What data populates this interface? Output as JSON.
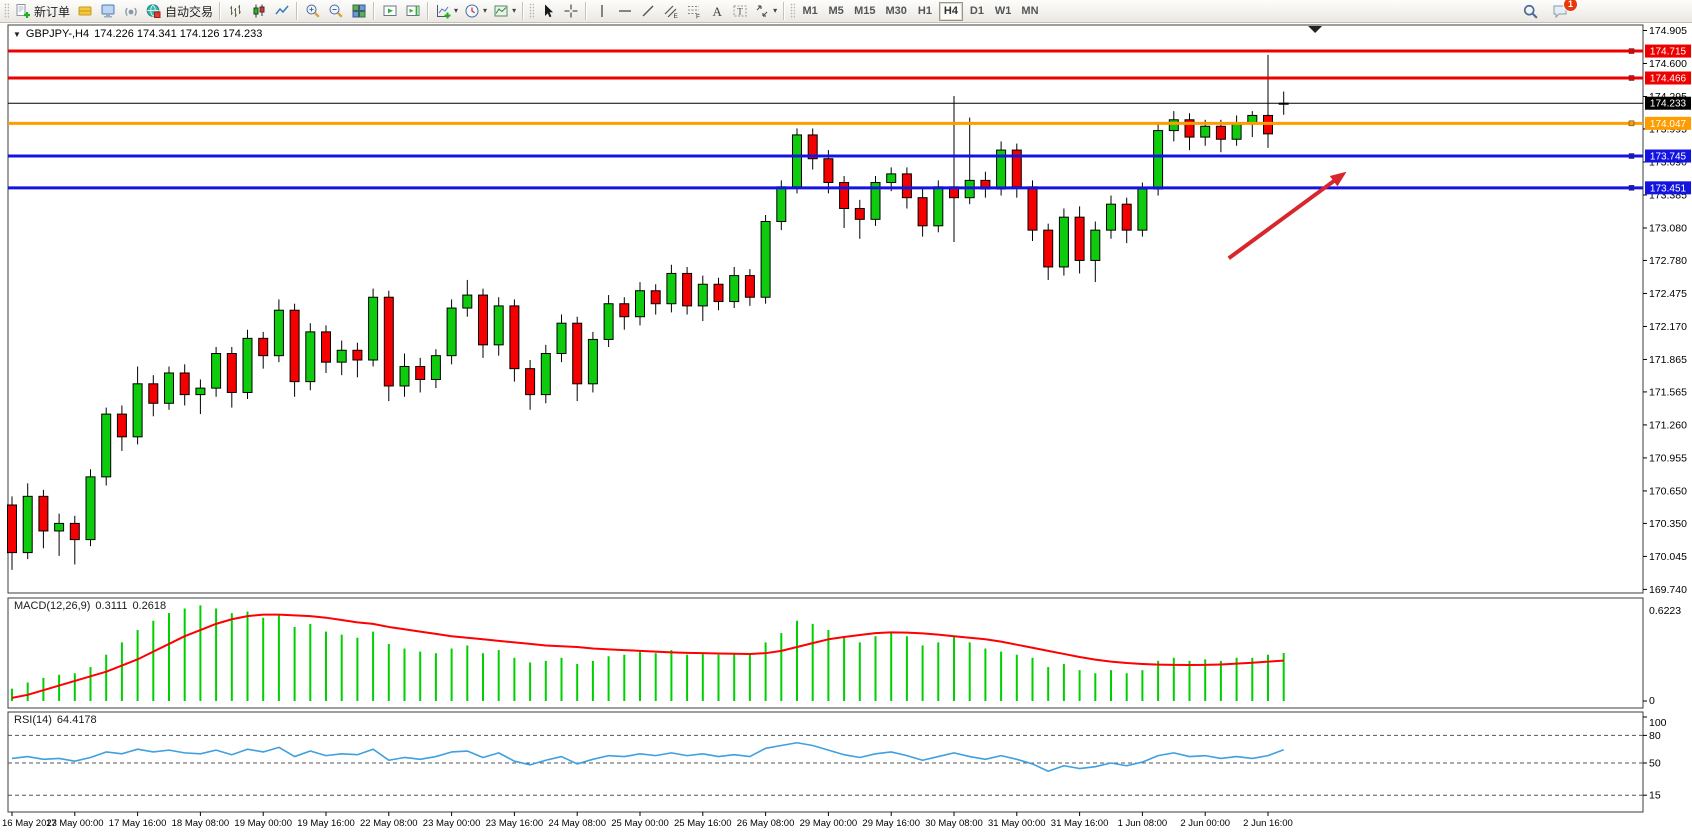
{
  "window": {
    "title_symbol": "GBPJPY-,H4",
    "title_quote": "174.226 174.341 174.126 174.233"
  },
  "toolbar": {
    "new_order_label": "新订单",
    "auto_trading_label": "自动交易",
    "timeframes": [
      "M1",
      "M5",
      "M15",
      "M30",
      "H1",
      "H4",
      "D1",
      "W1",
      "MN"
    ],
    "active_timeframe": "H4",
    "notification_count": "1",
    "icon_names": [
      "new-order-icon",
      "editor-icon",
      "terminal-icon",
      "signals-icon",
      "auto-trading-icon",
      "bar-chart-icon",
      "candlestick-chart-icon",
      "line-chart-icon",
      "zoom-in-icon",
      "zoom-out-icon",
      "tile-windows-icon",
      "auto-scroll-icon",
      "chart-shift-icon",
      "indicators-icon",
      "periods-icon",
      "templates-icon",
      "cursor-icon",
      "crosshair-icon",
      "vertical-line-icon",
      "horizontal-line-icon",
      "trendline-icon",
      "channel-icon",
      "fibonacci-icon",
      "text-icon",
      "text-label-icon",
      "arrows-icon",
      "search-icon",
      "chat-icon"
    ]
  },
  "chart_data": {
    "type": "candlestick",
    "symbol": "GBPJPY-",
    "timeframe": "H4",
    "quote": {
      "open": "174.226",
      "high": "174.341",
      "low": "174.126",
      "close": "174.233"
    },
    "price_axis": {
      "max": 174.905,
      "min": 169.74,
      "ticks": [
        "174.905",
        "174.600",
        "174.295",
        "173.995",
        "173.690",
        "173.385",
        "173.080",
        "172.780",
        "172.475",
        "172.170",
        "171.865",
        "171.565",
        "171.260",
        "170.955",
        "170.650",
        "170.350",
        "170.045",
        "169.740"
      ]
    },
    "time_axis": {
      "label_every_bars": 4,
      "labels": [
        "16 May 2023",
        "17 May 00:00",
        "17 May 16:00",
        "18 May 08:00",
        "19 May 00:00",
        "19 May 16:00",
        "22 May 08:00",
        "23 May 00:00",
        "23 May 16:00",
        "24 May 08:00",
        "25 May 00:00",
        "25 May 16:00",
        "26 May 08:00",
        "29 May 00:00",
        "29 May 16:00",
        "30 May 08:00",
        "31 May 00:00",
        "31 May 16:00",
        "1 Jun 08:00",
        "2 Jun 00:00",
        "2 Jun 16:00"
      ]
    },
    "colors": {
      "up": "#0ECB0E",
      "down": "#F40000",
      "wick": "#000000",
      "macd_hist": "#00CF00",
      "macd_signal": "#FF0000",
      "rsi_line": "#3FA0E0"
    },
    "candles": [
      [
        170.52,
        170.6,
        169.92,
        170.08
      ],
      [
        170.08,
        170.72,
        170.02,
        170.6
      ],
      [
        170.6,
        170.66,
        170.12,
        170.28
      ],
      [
        170.28,
        170.44,
        170.05,
        170.35
      ],
      [
        170.35,
        170.42,
        169.97,
        170.2
      ],
      [
        170.2,
        170.85,
        170.14,
        170.78
      ],
      [
        170.78,
        171.42,
        170.7,
        171.36
      ],
      [
        171.36,
        171.44,
        171.02,
        171.15
      ],
      [
        171.15,
        171.8,
        171.08,
        171.64
      ],
      [
        171.64,
        171.72,
        171.34,
        171.46
      ],
      [
        171.46,
        171.8,
        171.4,
        171.74
      ],
      [
        171.74,
        171.82,
        171.44,
        171.54
      ],
      [
        171.54,
        171.68,
        171.36,
        171.6
      ],
      [
        171.6,
        171.98,
        171.52,
        171.92
      ],
      [
        171.92,
        171.98,
        171.42,
        171.56
      ],
      [
        171.56,
        172.14,
        171.5,
        172.06
      ],
      [
        172.06,
        172.12,
        171.78,
        171.9
      ],
      [
        171.9,
        172.42,
        171.84,
        172.32
      ],
      [
        172.32,
        172.38,
        171.52,
        171.66
      ],
      [
        171.66,
        172.2,
        171.58,
        172.12
      ],
      [
        172.12,
        172.18,
        171.74,
        171.84
      ],
      [
        171.84,
        172.04,
        171.72,
        171.95
      ],
      [
        171.95,
        172.02,
        171.7,
        171.86
      ],
      [
        171.86,
        172.52,
        171.8,
        172.44
      ],
      [
        172.44,
        172.5,
        171.48,
        171.62
      ],
      [
        171.62,
        171.92,
        171.52,
        171.8
      ],
      [
        171.8,
        171.88,
        171.56,
        171.68
      ],
      [
        171.68,
        171.96,
        171.6,
        171.9
      ],
      [
        171.9,
        172.42,
        171.82,
        172.34
      ],
      [
        172.34,
        172.6,
        172.26,
        172.46
      ],
      [
        172.46,
        172.52,
        171.88,
        172.0
      ],
      [
        172.0,
        172.44,
        171.9,
        172.36
      ],
      [
        172.36,
        172.42,
        171.66,
        171.78
      ],
      [
        171.78,
        171.86,
        171.4,
        171.54
      ],
      [
        171.54,
        172.0,
        171.46,
        171.92
      ],
      [
        171.92,
        172.28,
        171.84,
        172.2
      ],
      [
        172.2,
        172.26,
        171.48,
        171.64
      ],
      [
        171.64,
        172.12,
        171.56,
        172.05
      ],
      [
        172.05,
        172.46,
        171.98,
        172.38
      ],
      [
        172.38,
        172.44,
        172.14,
        172.26
      ],
      [
        172.26,
        172.58,
        172.18,
        172.5
      ],
      [
        172.5,
        172.56,
        172.28,
        172.38
      ],
      [
        172.38,
        172.74,
        172.3,
        172.66
      ],
      [
        172.66,
        172.72,
        172.28,
        172.36
      ],
      [
        172.36,
        172.64,
        172.22,
        172.56
      ],
      [
        172.56,
        172.62,
        172.32,
        172.4
      ],
      [
        172.4,
        172.72,
        172.34,
        172.64
      ],
      [
        172.64,
        172.7,
        172.36,
        172.44
      ],
      [
        172.44,
        173.2,
        172.38,
        173.14
      ],
      [
        173.14,
        173.52,
        173.06,
        173.46
      ],
      [
        173.46,
        174.0,
        173.4,
        173.94
      ],
      [
        173.94,
        174.0,
        173.62,
        173.72
      ],
      [
        173.72,
        173.8,
        173.4,
        173.5
      ],
      [
        173.5,
        173.56,
        173.08,
        173.26
      ],
      [
        173.26,
        173.34,
        172.98,
        173.16
      ],
      [
        173.16,
        173.56,
        173.1,
        173.5
      ],
      [
        173.5,
        173.64,
        173.42,
        173.58
      ],
      [
        173.58,
        173.64,
        173.26,
        173.36
      ],
      [
        173.36,
        173.44,
        173.0,
        173.1
      ],
      [
        173.1,
        173.52,
        173.04,
        173.46
      ],
      [
        173.46,
        174.3,
        172.95,
        173.36
      ],
      [
        173.36,
        174.1,
        173.3,
        173.52
      ],
      [
        173.52,
        173.6,
        173.36,
        173.44
      ],
      [
        173.44,
        173.88,
        173.38,
        173.8
      ],
      [
        173.8,
        173.86,
        173.36,
        173.46
      ],
      [
        173.46,
        173.52,
        172.96,
        173.06
      ],
      [
        173.06,
        173.12,
        172.6,
        172.72
      ],
      [
        172.72,
        173.26,
        172.64,
        173.18
      ],
      [
        173.18,
        173.28,
        172.66,
        172.78
      ],
      [
        172.78,
        173.14,
        172.58,
        173.06
      ],
      [
        173.06,
        173.38,
        172.98,
        173.3
      ],
      [
        173.3,
        173.36,
        172.94,
        173.06
      ],
      [
        173.06,
        173.5,
        173.0,
        173.44
      ],
      [
        173.44,
        174.06,
        173.38,
        173.98
      ],
      [
        173.98,
        174.16,
        173.88,
        174.08
      ],
      [
        174.08,
        174.14,
        173.8,
        173.92
      ],
      [
        173.92,
        174.08,
        173.84,
        174.02
      ],
      [
        174.02,
        174.08,
        173.78,
        173.9
      ],
      [
        173.9,
        174.12,
        173.84,
        174.04
      ],
      [
        174.04,
        174.16,
        173.92,
        174.12
      ],
      [
        174.12,
        174.68,
        173.82,
        173.95
      ],
      [
        174.226,
        174.341,
        174.126,
        174.233
      ]
    ],
    "hlines": [
      {
        "price": 174.715,
        "color": "#ED0000",
        "label": "174.715",
        "width": 3,
        "role": "resistance"
      },
      {
        "price": 174.466,
        "color": "#ED0000",
        "label": "174.466",
        "width": 3,
        "role": "resistance"
      },
      {
        "price": 174.233,
        "color": "#000000",
        "label": "174.233",
        "width": 1,
        "role": "current-price"
      },
      {
        "price": 174.047,
        "color": "#FF9C00",
        "label": "174.047",
        "width": 3,
        "role": "level"
      },
      {
        "price": 173.745,
        "color": "#1414E0",
        "label": "173.745",
        "width": 3,
        "role": "support"
      },
      {
        "price": 173.451,
        "color": "#1414E0",
        "label": "173.451",
        "width": 3,
        "role": "support"
      }
    ],
    "annotations": {
      "arrow": {
        "bar_from": 77.5,
        "price_from": 172.8,
        "bar_to": 85.0,
        "price_to": 173.6,
        "color": "#D8262C"
      },
      "shift_marker_bar": 83
    },
    "macd": {
      "label": "MACD(12,26,9)",
      "value_main": "0.3111",
      "value_signal": "0.2618",
      "axis_max": "0.6223",
      "axis_min": "0",
      "histogram": [
        0.08,
        0.12,
        0.15,
        0.17,
        0.18,
        0.22,
        0.3,
        0.38,
        0.46,
        0.52,
        0.57,
        0.6,
        0.62,
        0.6,
        0.57,
        0.58,
        0.54,
        0.56,
        0.48,
        0.5,
        0.45,
        0.43,
        0.41,
        0.45,
        0.37,
        0.34,
        0.32,
        0.31,
        0.34,
        0.36,
        0.31,
        0.33,
        0.28,
        0.25,
        0.26,
        0.28,
        0.24,
        0.26,
        0.29,
        0.3,
        0.32,
        0.31,
        0.33,
        0.3,
        0.31,
        0.3,
        0.31,
        0.3,
        0.38,
        0.44,
        0.52,
        0.5,
        0.46,
        0.42,
        0.38,
        0.42,
        0.44,
        0.42,
        0.36,
        0.38,
        0.42,
        0.38,
        0.34,
        0.32,
        0.3,
        0.28,
        0.22,
        0.24,
        0.2,
        0.18,
        0.2,
        0.18,
        0.2,
        0.26,
        0.28,
        0.26,
        0.27,
        0.26,
        0.28,
        0.28,
        0.3,
        0.3111
      ],
      "signal": [
        0.02,
        0.04,
        0.07,
        0.1,
        0.13,
        0.16,
        0.19,
        0.23,
        0.27,
        0.32,
        0.37,
        0.42,
        0.46,
        0.5,
        0.53,
        0.55,
        0.56,
        0.56,
        0.555,
        0.55,
        0.54,
        0.525,
        0.51,
        0.5,
        0.48,
        0.465,
        0.45,
        0.435,
        0.42,
        0.41,
        0.4,
        0.39,
        0.38,
        0.37,
        0.36,
        0.355,
        0.35,
        0.34,
        0.335,
        0.33,
        0.325,
        0.32,
        0.315,
        0.312,
        0.31,
        0.308,
        0.306,
        0.305,
        0.31,
        0.325,
        0.35,
        0.375,
        0.4,
        0.415,
        0.428,
        0.44,
        0.445,
        0.443,
        0.438,
        0.43,
        0.42,
        0.41,
        0.4,
        0.385,
        0.365,
        0.345,
        0.325,
        0.305,
        0.285,
        0.268,
        0.255,
        0.246,
        0.24,
        0.236,
        0.234,
        0.233,
        0.234,
        0.237,
        0.242,
        0.248,
        0.255,
        0.2618
      ]
    },
    "rsi": {
      "label": "RSI(14)",
      "value": "64.4178",
      "axis_labels": [
        "100",
        "80",
        "50",
        "15"
      ],
      "levels": [
        80,
        50,
        15
      ],
      "values": [
        55,
        57,
        54,
        55,
        52,
        56,
        62,
        60,
        65,
        62,
        64,
        61,
        60,
        64,
        59,
        65,
        62,
        67,
        57,
        63,
        58,
        60,
        59,
        65,
        53,
        56,
        54,
        57,
        62,
        63,
        56,
        61,
        52,
        48,
        53,
        57,
        49,
        54,
        58,
        57,
        60,
        58,
        61,
        58,
        60,
        57,
        59,
        57,
        66,
        69,
        72,
        69,
        64,
        59,
        56,
        60,
        62,
        58,
        53,
        57,
        61,
        57,
        54,
        58,
        54,
        49,
        41,
        47,
        44,
        46,
        50,
        47,
        51,
        58,
        61,
        57,
        58,
        55,
        57,
        55,
        58,
        64.4
      ]
    }
  }
}
